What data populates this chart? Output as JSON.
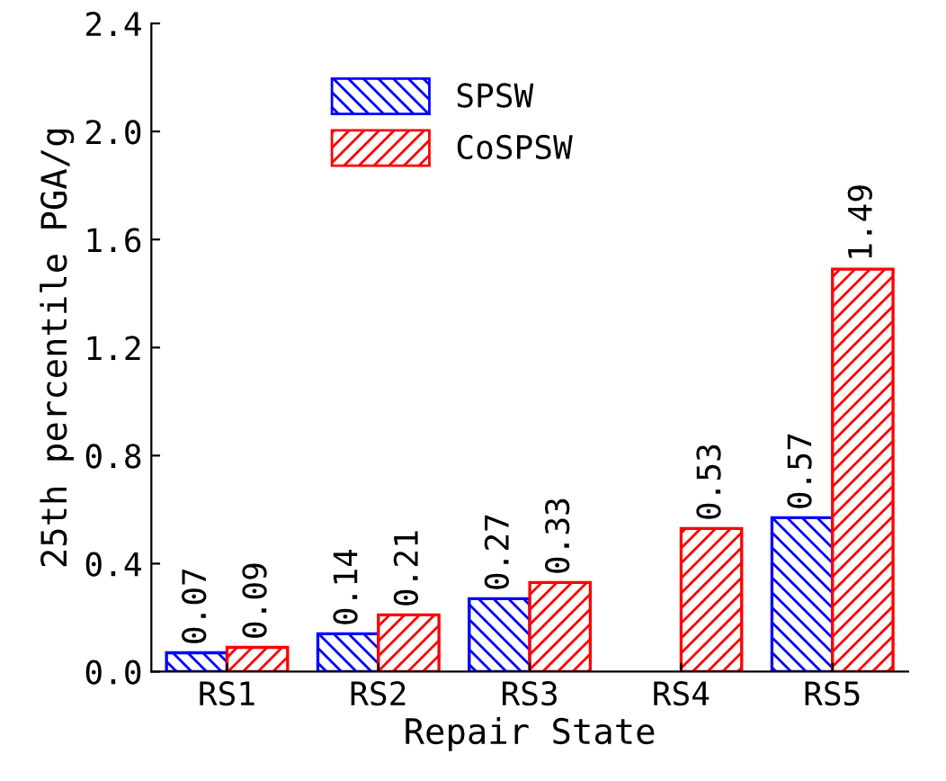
{
  "chart_data": {
    "type": "bar",
    "xlabel": "Repair State",
    "ylabel": "25th percentile PGA/g",
    "categories": [
      "RS1",
      "RS2",
      "RS3",
      "RS4",
      "RS5"
    ],
    "series": [
      {
        "name": "SPSW",
        "color": "#0000ff",
        "values": [
          0.07,
          0.14,
          0.27,
          null,
          0.57
        ]
      },
      {
        "name": "CoSPSW",
        "color": "#ff0000",
        "values": [
          0.09,
          0.21,
          0.33,
          0.53,
          1.49
        ]
      }
    ],
    "ylim": [
      0,
      2.4
    ],
    "yticks": [
      {
        "value": 0,
        "label": "0.0"
      },
      {
        "value": 0.4,
        "label": "0.4"
      },
      {
        "value": 0.8,
        "label": "0.8"
      },
      {
        "value": 1.2,
        "label": "1.2"
      },
      {
        "value": 1.6,
        "label": "1.6"
      },
      {
        "value": 2.0,
        "label": "2.0"
      },
      {
        "value": 2.4,
        "label": "2.4"
      }
    ],
    "data_labels": true,
    "legend": "top left",
    "grid": false
  }
}
